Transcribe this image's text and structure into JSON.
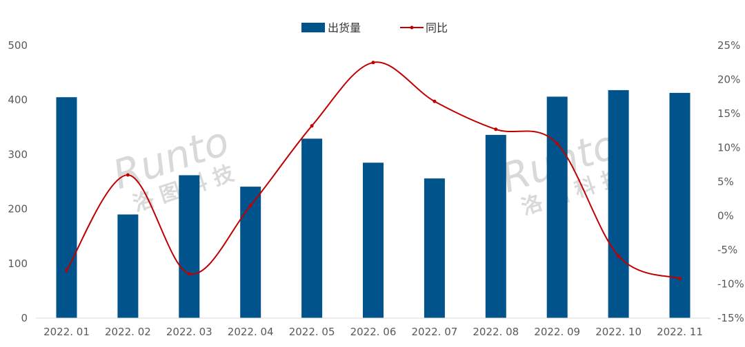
{
  "chart_data": {
    "type": "bar",
    "categories": [
      "2022. 01",
      "2022. 02",
      "2022. 03",
      "2022. 04",
      "2022. 05",
      "2022. 06",
      "2022. 07",
      "2022. 08",
      "2022. 09",
      "2022. 10",
      "2022. 11"
    ],
    "series": [
      {
        "name": "出货量",
        "type": "bar",
        "axis": "left",
        "color": "#00538b",
        "values": [
          405,
          190,
          262,
          241,
          329,
          285,
          256,
          336,
          406,
          418,
          413
        ]
      },
      {
        "name": "同比",
        "type": "line",
        "axis": "right",
        "color": "#c00000",
        "values": [
          -8.0,
          6.0,
          -8.5,
          1.5,
          13.2,
          22.5,
          16.8,
          12.7,
          10.6,
          -5.9,
          -9.2
        ]
      }
    ],
    "left_axis": {
      "ylim": [
        0,
        500
      ],
      "ticks": [
        0,
        100,
        200,
        300,
        400,
        500
      ],
      "tick_labels": [
        "0",
        "100",
        "200",
        "300",
        "400",
        "500"
      ]
    },
    "right_axis": {
      "ylim": [
        -15,
        25
      ],
      "ticks": [
        -15,
        -10,
        -5,
        0,
        5,
        10,
        15,
        20,
        25
      ],
      "tick_labels": [
        "-15%",
        "-10%",
        "-5%",
        "0%",
        "5%",
        "10%",
        "15%",
        "20%",
        "25%"
      ]
    },
    "title": "",
    "xlabel": "",
    "ylabel": "",
    "legend": {
      "placement": "top-center",
      "entries": [
        "出货量",
        "同比"
      ]
    },
    "grid": false,
    "watermark": {
      "latin": "Runto",
      "cn": "洛 图 科 技"
    }
  }
}
